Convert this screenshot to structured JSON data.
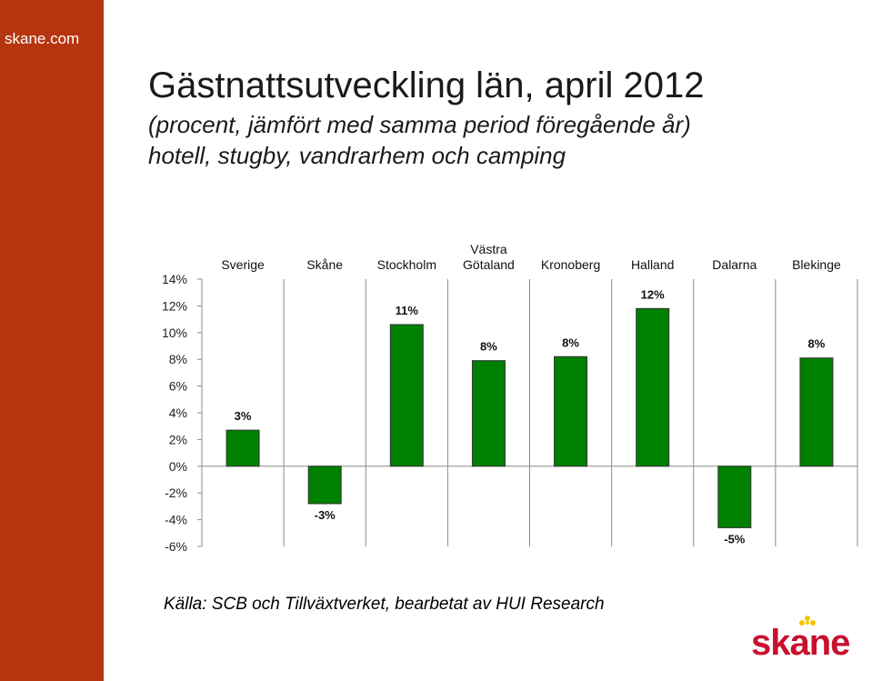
{
  "sidebar": {
    "site_label": "skane.com",
    "color": "#b5350f"
  },
  "header": {
    "title": "Gästnattsutveckling län, april 2012",
    "subtitle_line1": "(procent, jämfört med samma period föregående år)",
    "subtitle_line2": "hotell, stugby, vandrarhem och camping"
  },
  "chart_data": {
    "type": "bar",
    "categories": [
      [
        "Sverige"
      ],
      [
        "Skåne"
      ],
      [
        "Stockholm"
      ],
      [
        "Västra",
        "Götaland"
      ],
      [
        "Kronoberg"
      ],
      [
        "Halland"
      ],
      [
        "Dalarna"
      ],
      [
        "Blekinge"
      ]
    ],
    "values": [
      2.7,
      -2.8,
      10.6,
      7.9,
      8.2,
      11.8,
      -4.6,
      8.1
    ],
    "data_labels": [
      "3%",
      "-3%",
      "11%",
      "8%",
      "8%",
      "12%",
      "-5%",
      "8%"
    ],
    "y_ticks": [
      "14%",
      "12%",
      "10%",
      "8%",
      "6%",
      "4%",
      "2%",
      "0%",
      "-2%",
      "-4%",
      "-6%"
    ],
    "ylim": [
      -6,
      14
    ],
    "bar_color": "#008000",
    "grid": false,
    "category_labels_position": "top"
  },
  "footer": {
    "source": "Källa: SCB och Tillväxtverket, bearbetat av HUI Research"
  },
  "logo": {
    "text": "skåne",
    "color": "#c8102e",
    "accent_color": "#f5c400"
  }
}
